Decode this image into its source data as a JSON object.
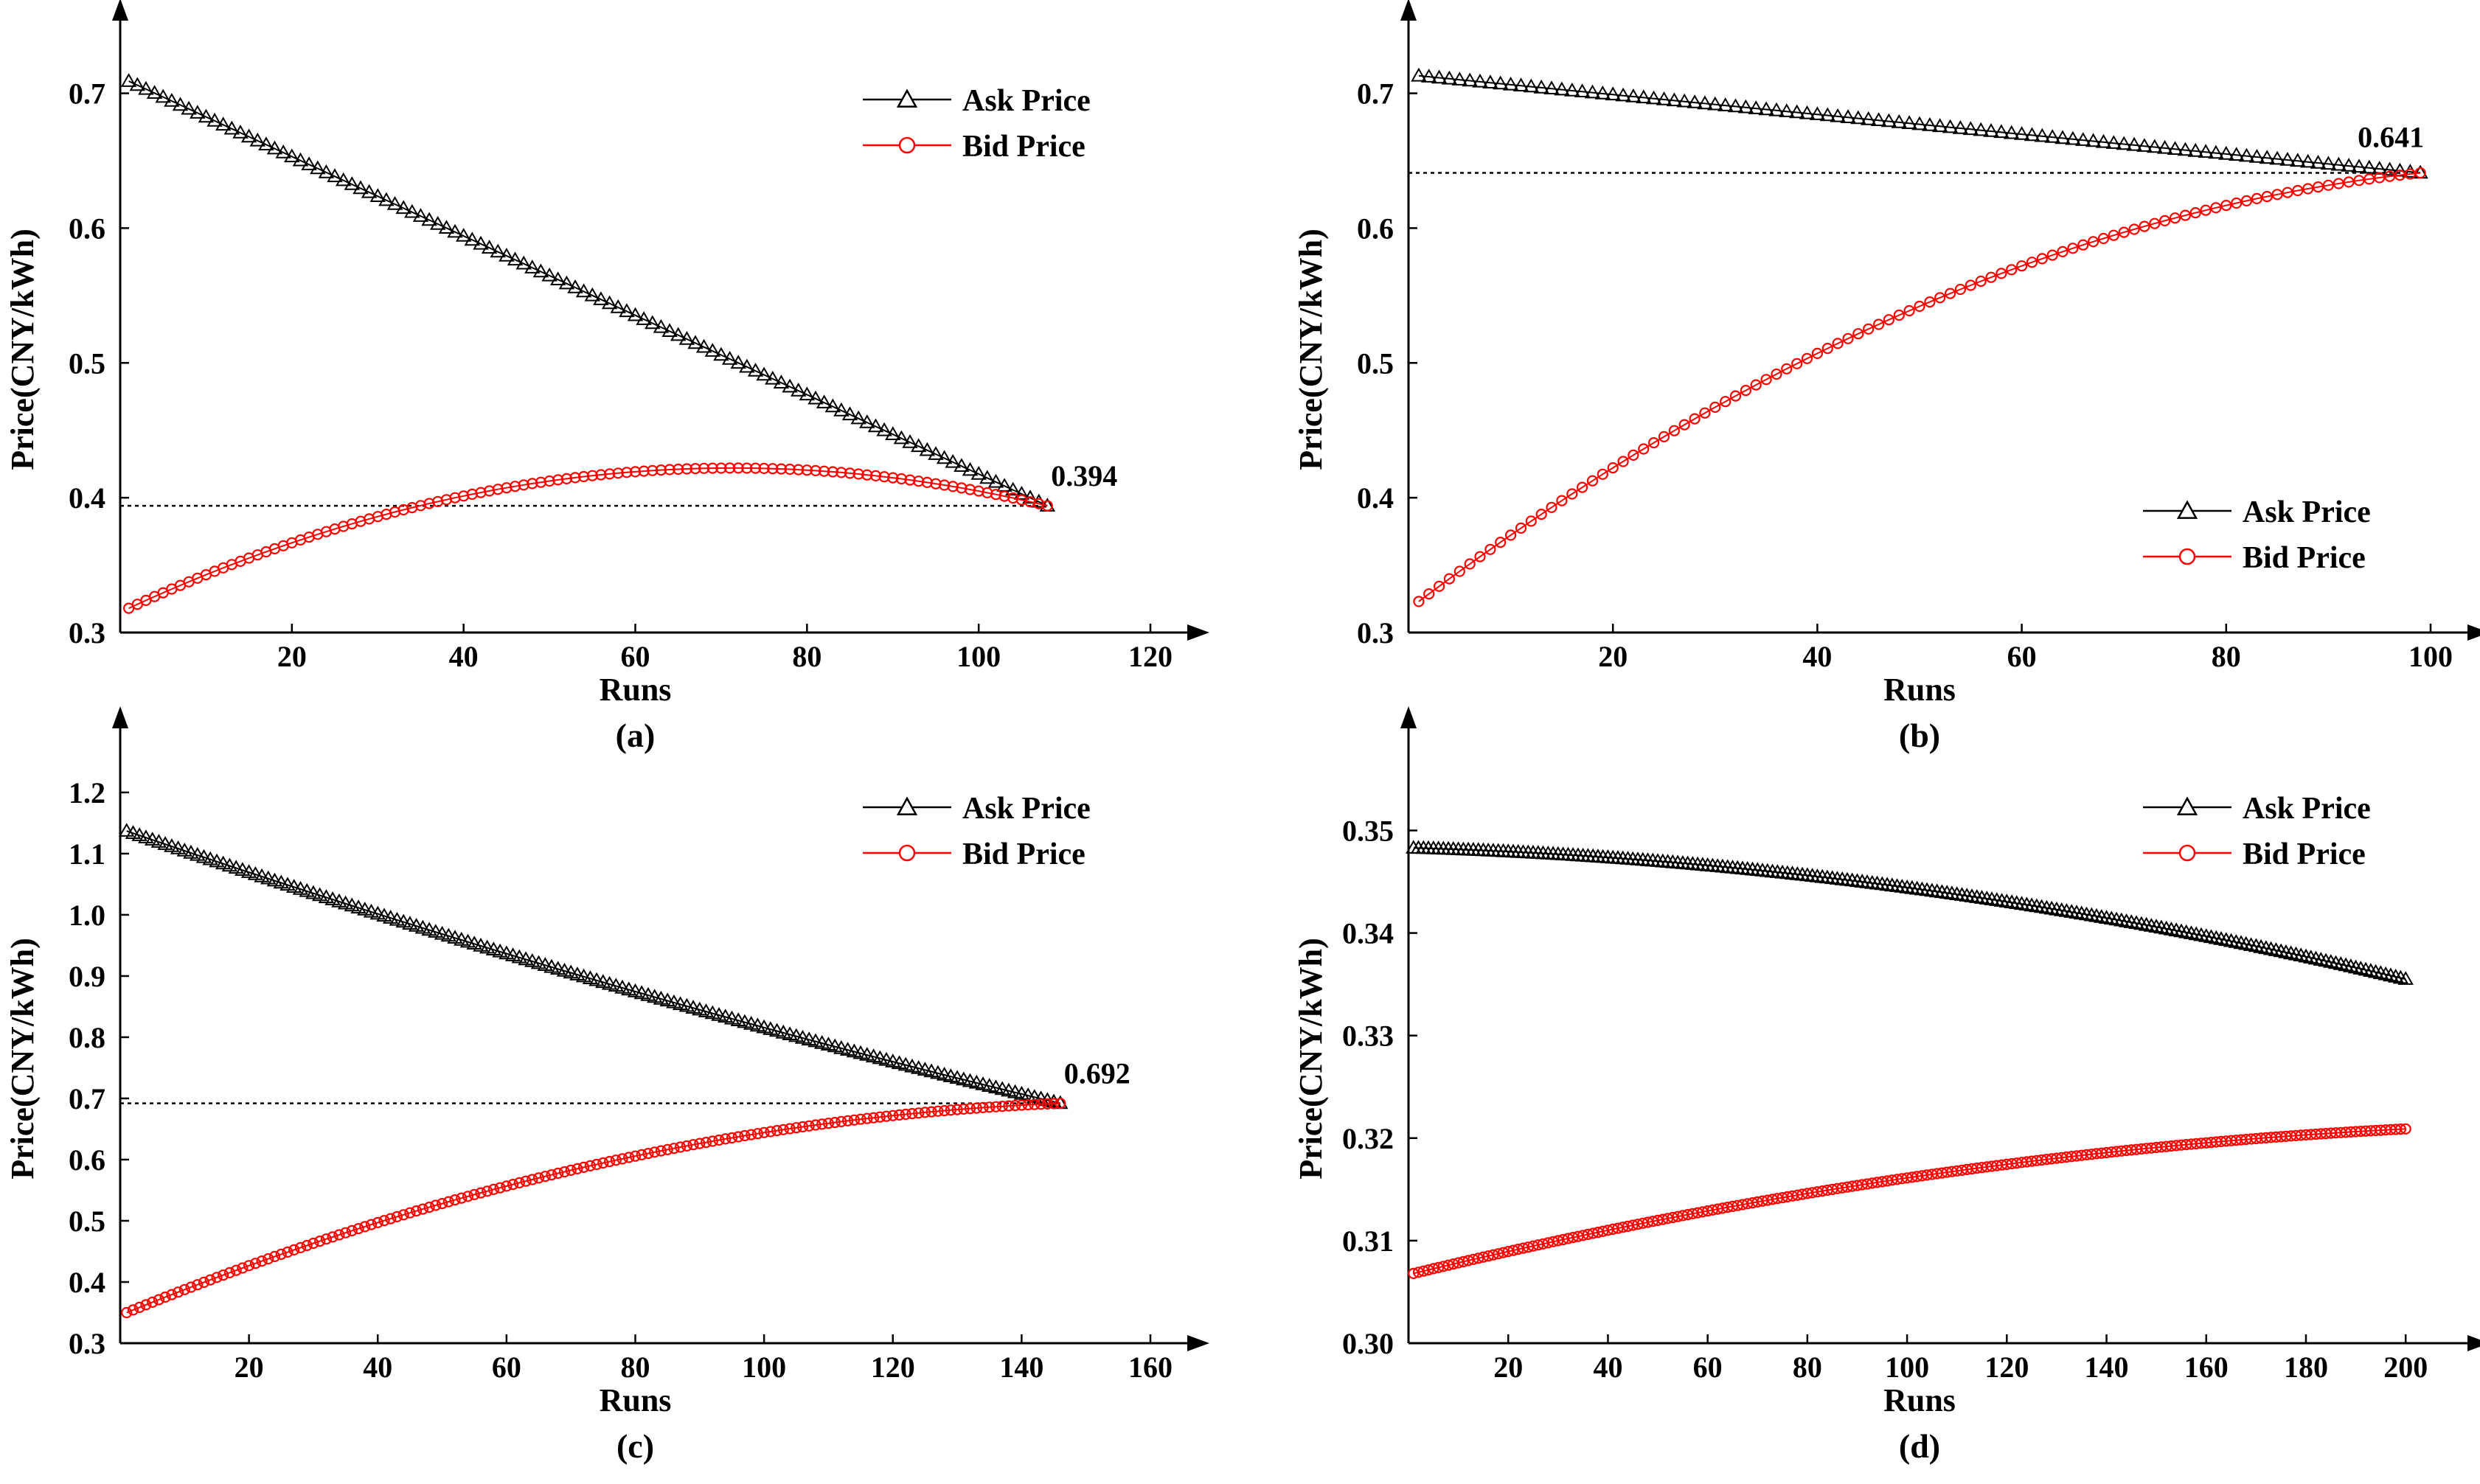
{
  "chart_data": [
    {
      "type": "line",
      "panel_label": "(a)",
      "xlabel": "Runs",
      "ylabel": "Price(CNY/kWh)",
      "xlim": [
        0,
        120
      ],
      "ylim": [
        0.3,
        0.72
      ],
      "xticks": [
        "20",
        "40",
        "60",
        "80",
        "100",
        "120"
      ],
      "yticks": [
        "0.3",
        "0.4",
        "0.5",
        "0.6",
        "0.7"
      ],
      "legend_position": "top-right",
      "equilibrium": {
        "run": 108,
        "price": 0.394,
        "label": "0.394"
      },
      "series": [
        {
          "name": "Ask Price",
          "marker": "triangle",
          "color": "#000000",
          "start": [
            1,
            0.709
          ],
          "end": [
            108,
            0.394
          ],
          "curve": 0.0,
          "n_points": 108
        },
        {
          "name": "Bid Price",
          "marker": "circle",
          "color": "#ff0000",
          "start": [
            1,
            0.318
          ],
          "end": [
            108,
            0.394
          ],
          "curve": 0.06,
          "n_points": 108
        }
      ]
    },
    {
      "type": "line",
      "panel_label": "(b)",
      "xlabel": "Runs",
      "ylabel": "Price(CNY/kWh)",
      "xlim": [
        0,
        100
      ],
      "ylim": [
        0.3,
        0.72
      ],
      "xticks": [
        "20",
        "40",
        "60",
        "80",
        "100"
      ],
      "yticks": [
        "0.3",
        "0.4",
        "0.5",
        "0.6",
        "0.7"
      ],
      "legend_position": "bottom-right",
      "equilibrium": {
        "run": 99,
        "price": 0.641,
        "label": "0.641"
      },
      "series": [
        {
          "name": "Ask Price",
          "marker": "triangle",
          "color": "#000000",
          "start": [
            1,
            0.713
          ],
          "end": [
            99,
            0.641
          ],
          "curve": 0.0,
          "n_points": 99
        },
        {
          "name": "Bid Price",
          "marker": "circle",
          "color": "#ff0000",
          "start": [
            1,
            0.323
          ],
          "end": [
            99,
            0.641
          ],
          "curve": 0.06,
          "n_points": 99
        }
      ]
    },
    {
      "type": "line",
      "panel_label": "(c)",
      "xlabel": "Runs",
      "ylabel": "Price(CNY/kWh)",
      "xlim": [
        0,
        160
      ],
      "ylim": [
        0.3,
        1.23
      ],
      "xticks": [
        "20",
        "40",
        "60",
        "80",
        "100",
        "120",
        "140",
        "160"
      ],
      "yticks": [
        "0.3",
        "0.4",
        "0.5",
        "0.6",
        "0.7",
        "0.8",
        "0.9",
        "1.0",
        "1.1",
        "1.2"
      ],
      "legend_position": "top-right",
      "equilibrium": {
        "run": 146,
        "price": 0.692,
        "label": "0.692"
      },
      "series": [
        {
          "name": "Ask Price",
          "marker": "triangle",
          "color": "#000000",
          "start": [
            1,
            1.137
          ],
          "end": [
            146,
            0.692
          ],
          "curve": -0.02,
          "n_points": 146
        },
        {
          "name": "Bid Price",
          "marker": "circle",
          "color": "#ff0000",
          "start": [
            1,
            0.35
          ],
          "end": [
            146,
            0.692
          ],
          "curve": 0.07,
          "n_points": 146
        }
      ]
    },
    {
      "type": "line",
      "panel_label": "(d)",
      "xlabel": "Runs",
      "ylabel": "Price(CNY/kWh)",
      "xlim": [
        0,
        205
      ],
      "ylim": [
        0.3,
        0.3555
      ],
      "xticks": [
        "20",
        "40",
        "60",
        "80",
        "100",
        "120",
        "140",
        "160",
        "180",
        "200"
      ],
      "yticks": [
        "0.30",
        "0.31",
        "0.32",
        "0.33",
        "0.34",
        "0.35"
      ],
      "legend_position": "top-right",
      "series": [
        {
          "name": "Ask Price",
          "marker": "triangle",
          "color": "#000000",
          "start": [
            1,
            0.3483
          ],
          "end": [
            200,
            0.3355
          ],
          "curve": 0.0025,
          "n_points": 200
        },
        {
          "name": "Bid Price",
          "marker": "circle",
          "color": "#ff0000",
          "start": [
            1,
            0.3068
          ],
          "end": [
            200,
            0.3209
          ],
          "curve": 0.0023,
          "n_points": 200
        }
      ]
    }
  ]
}
